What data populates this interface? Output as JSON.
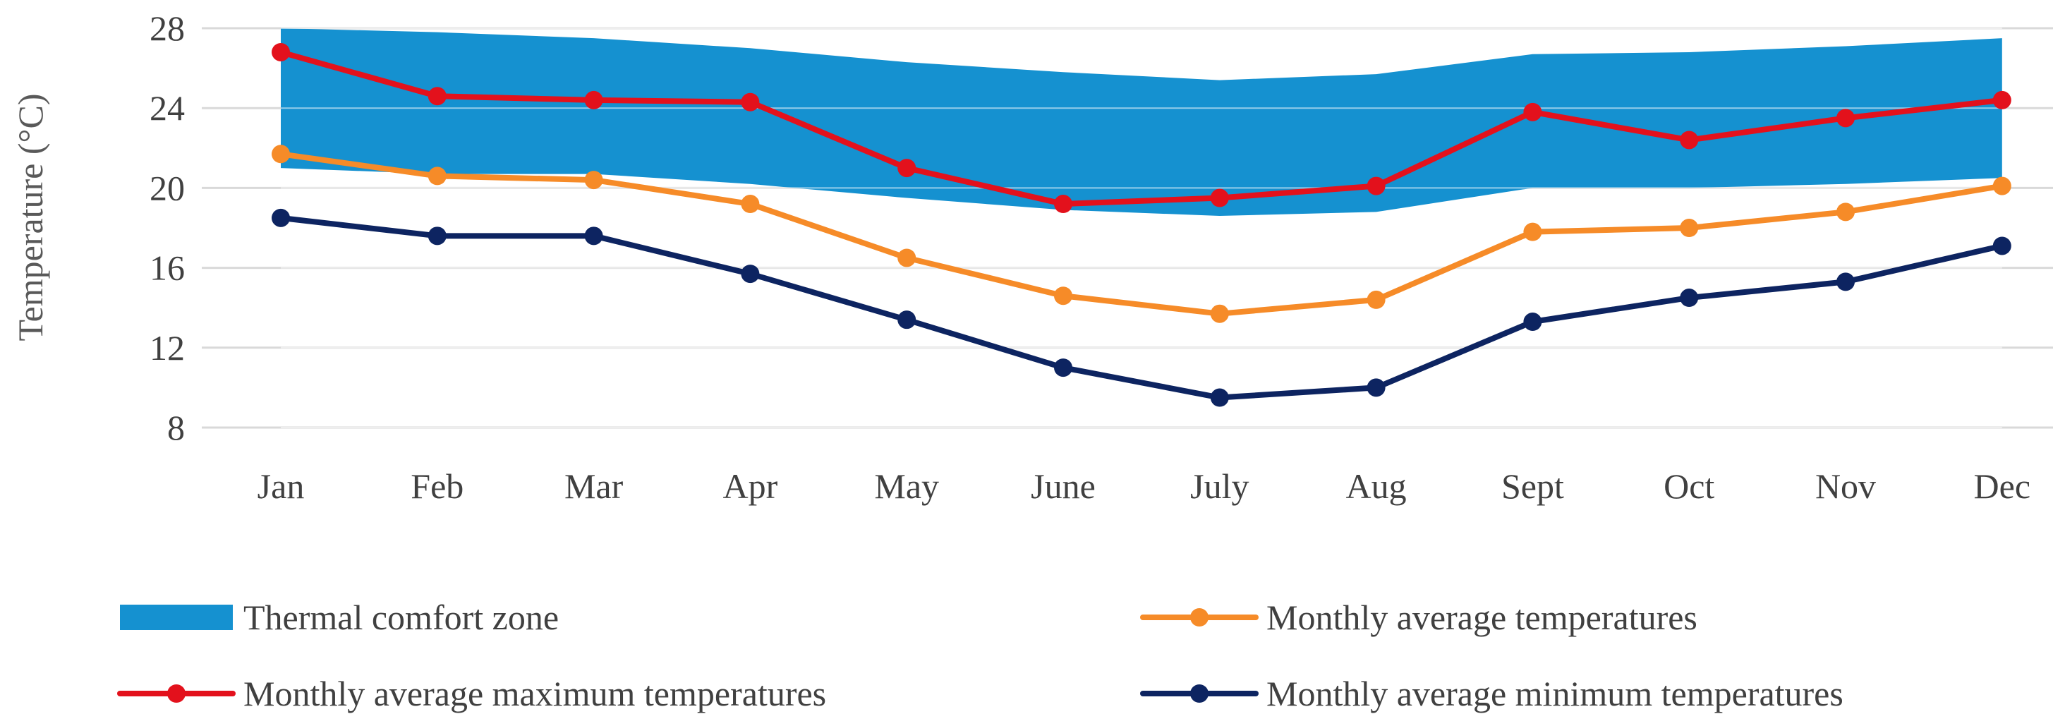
{
  "chart_data": {
    "type": "line",
    "title": "",
    "xlabel": "",
    "ylabel": "Temperature (°C)",
    "ylim": [
      8,
      28
    ],
    "yticks": [
      8,
      12,
      16,
      20,
      24,
      28
    ],
    "grid": true,
    "legend_position": "bottom",
    "categories": [
      "Jan",
      "Feb",
      "Mar",
      "Apr",
      "May",
      "June",
      "July",
      "Aug",
      "Sept",
      "Oct",
      "Nov",
      "Dec"
    ],
    "band": {
      "name": "Thermal comfort zone",
      "color": "#1591d0",
      "lower": [
        21.0,
        20.7,
        20.7,
        20.2,
        19.5,
        18.9,
        18.6,
        18.8,
        20.0,
        20.0,
        20.2,
        20.5
      ],
      "upper": [
        28.0,
        27.8,
        27.5,
        27.0,
        26.3,
        25.8,
        25.4,
        25.7,
        26.7,
        26.8,
        27.1,
        27.5
      ]
    },
    "series": [
      {
        "name": "Monthly average maximum temperatures",
        "color": "#e3111c",
        "values": [
          26.8,
          24.6,
          24.4,
          24.3,
          21.0,
          19.2,
          19.5,
          20.1,
          23.8,
          22.4,
          23.5,
          24.4
        ]
      },
      {
        "name": "Monthly average temperatures",
        "color": "#f68b28",
        "values": [
          21.7,
          20.6,
          20.4,
          19.2,
          16.5,
          14.6,
          13.7,
          14.4,
          17.8,
          18.0,
          18.8,
          20.1
        ]
      },
      {
        "name": "Monthly average minimum temperatures",
        "color": "#0d2461",
        "values": [
          18.5,
          17.6,
          17.6,
          15.7,
          13.4,
          11.0,
          9.5,
          10.0,
          13.3,
          14.5,
          15.3,
          17.1
        ]
      }
    ],
    "legend": [
      {
        "label": "Thermal comfort zone",
        "kind": "band"
      },
      {
        "label": "Monthly average temperatures",
        "kind": "line",
        "series": 1
      },
      {
        "label": "Monthly average maximum temperatures",
        "kind": "line",
        "series": 0
      },
      {
        "label": "Monthly average minimum temperatures",
        "kind": "line",
        "series": 2
      }
    ]
  }
}
